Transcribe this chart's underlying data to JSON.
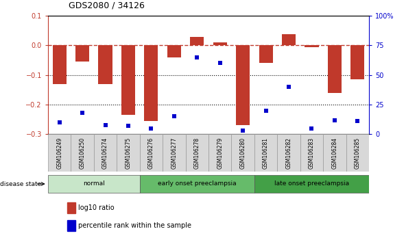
{
  "title": "GDS2080 / 34126",
  "samples": [
    "GSM106249",
    "GSM106250",
    "GSM106274",
    "GSM106275",
    "GSM106276",
    "GSM106277",
    "GSM106278",
    "GSM106279",
    "GSM106280",
    "GSM106281",
    "GSM106282",
    "GSM106283",
    "GSM106284",
    "GSM106285"
  ],
  "log10_ratio": [
    -0.13,
    -0.055,
    -0.13,
    -0.235,
    -0.255,
    -0.04,
    0.028,
    0.01,
    -0.27,
    -0.06,
    0.038,
    -0.005,
    -0.16,
    -0.115
  ],
  "percentile_rank": [
    10,
    18,
    8,
    7,
    5,
    15,
    65,
    60,
    3,
    20,
    40,
    5,
    12,
    11
  ],
  "ylim_left": [
    -0.3,
    0.1
  ],
  "ylim_right": [
    0,
    100
  ],
  "yticks_left": [
    -0.3,
    -0.2,
    -0.1,
    0.0,
    0.1
  ],
  "yticks_right": [
    0,
    25,
    50,
    75,
    100
  ],
  "yticklabels_right": [
    "0",
    "25",
    "50",
    "75",
    "100%"
  ],
  "bar_color": "#c0392b",
  "dot_color": "#0000cc",
  "groups": [
    {
      "label": "normal",
      "start": 0,
      "end": 3,
      "light_color": "#d4edda",
      "dark_color": "#d4edda"
    },
    {
      "label": "early onset preeclampsia",
      "start": 4,
      "end": 8,
      "light_color": "#5cb85c",
      "dark_color": "#5cb85c"
    },
    {
      "label": "late onset preeclampsia",
      "start": 9,
      "end": 13,
      "light_color": "#3e9c3e",
      "dark_color": "#3e9c3e"
    }
  ],
  "disease_state_label": "disease state",
  "legend_bar_label": "log10 ratio",
  "legend_dot_label": "percentile rank within the sample",
  "background_color": "#ffffff"
}
